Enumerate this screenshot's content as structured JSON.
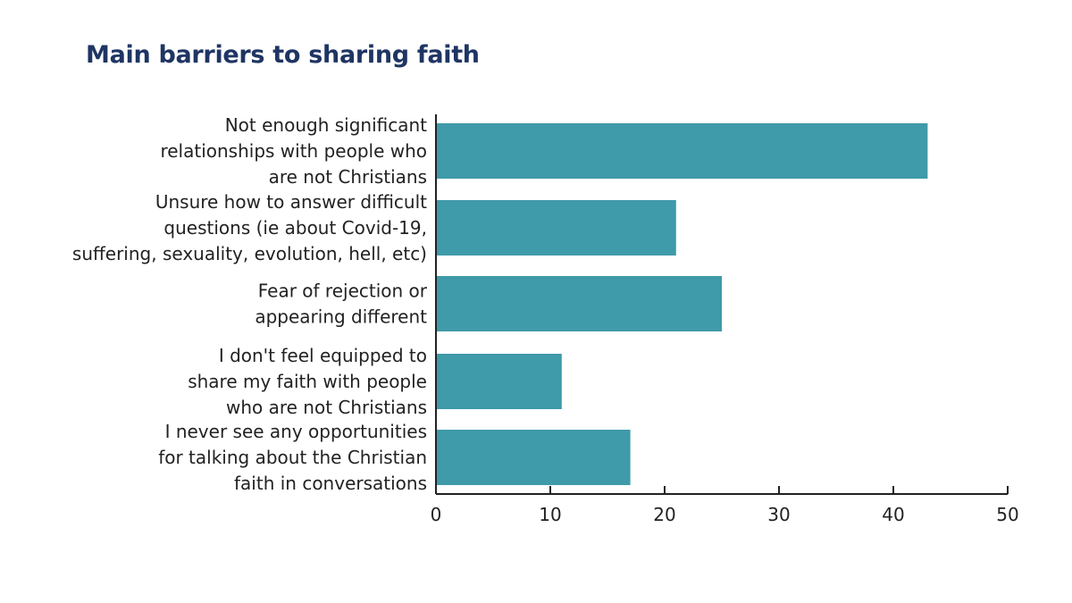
{
  "chart_data": {
    "type": "bar",
    "orientation": "horizontal",
    "title": "Main barriers to sharing faith",
    "categories": [
      [
        "Not enough significant",
        "relationships with people who",
        "are not Christians"
      ],
      [
        "Unsure how to answer difficult",
        "questions (ie about Covid-19,",
        "suffering, sexuality, evolution, hell, etc)"
      ],
      [
        "Fear of rejection or",
        "appearing different"
      ],
      [
        "I don't feel equipped to",
        "share my faith with people",
        "who are not Christians"
      ],
      [
        "I never see any opportunities",
        "for talking about the Christian",
        "faith in conversations"
      ]
    ],
    "values": [
      43,
      21,
      25,
      11,
      17
    ],
    "xlim": [
      0,
      50
    ],
    "xticks": [
      "0",
      "10",
      "20",
      "30",
      "40",
      "50"
    ],
    "bar_color": "#3f9aa9",
    "grid": false,
    "legend": "none"
  }
}
